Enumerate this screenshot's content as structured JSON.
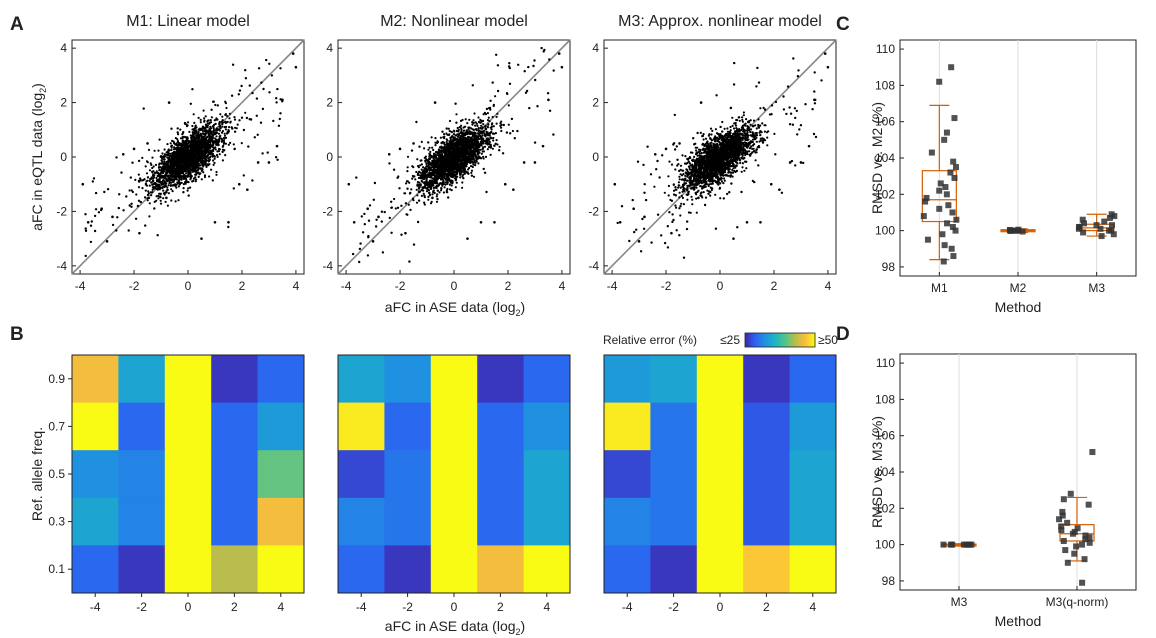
{
  "panel_letters": [
    "A",
    "B",
    "C",
    "D"
  ],
  "colorbar": {
    "label": "Relative error (%)",
    "min_label": "≤25",
    "max_label": "≥50",
    "min": 25,
    "max": 50,
    "colors": [
      "#3e26a8",
      "#2d62f2",
      "#1f92e0",
      "#1cb5c4",
      "#4dc68c",
      "#b7bd4f",
      "#fbbd3c",
      "#f9fb15"
    ]
  },
  "chart_data": [
    {
      "type": "scatter",
      "panel": "A",
      "title": "M1: Linear model",
      "xlabel": "",
      "ylabel": "aFC in eQTL data (log",
      "ylabel_sub": "2",
      "ylabel_close": ")",
      "xlim": [
        -4.3,
        4.3
      ],
      "ylim": [
        -4.3,
        4.3
      ],
      "xticks": [
        -4,
        -2,
        0,
        2,
        4
      ],
      "yticks": [
        -4,
        -2,
        0,
        2,
        4
      ],
      "reference_line": "y = x",
      "n_points": 2200,
      "spread": 0.55,
      "outliers": [
        [
          -3.7,
          -2.4
        ],
        [
          -3.2,
          -1.9
        ],
        [
          -2.8,
          -2.2
        ],
        [
          -2.4,
          0.1
        ],
        [
          -2.0,
          0.3
        ],
        [
          -1.8,
          -2.8
        ],
        [
          -1.5,
          0.5
        ],
        [
          -3.9,
          -1.0
        ],
        [
          -3.0,
          -3.1
        ],
        [
          1.9,
          -1.0
        ],
        [
          2.6,
          -0.2
        ],
        [
          3.3,
          0.4
        ],
        [
          3.0,
          -0.2
        ],
        [
          3.5,
          2.1
        ],
        [
          3.9,
          3.8
        ],
        [
          4.0,
          3.3
        ],
        [
          0.5,
          -3.0
        ],
        [
          -0.8,
          -1.5
        ],
        [
          1.0,
          -2.4
        ],
        [
          -0.7,
          2.0
        ],
        [
          1.5,
          -2.4
        ],
        [
          2.2,
          -1.2
        ]
      ]
    },
    {
      "type": "scatter",
      "panel": "A",
      "title": "M2: Nonlinear model",
      "xlabel": "aFC in ASE data (log",
      "xlabel_sub": "2",
      "xlabel_close": ")",
      "xlim": [
        -4.3,
        4.3
      ],
      "ylim": [
        -4.3,
        4.3
      ],
      "xticks": [
        -4,
        -2,
        0,
        2,
        4
      ],
      "yticks": [
        -4,
        -2,
        0,
        2,
        4
      ],
      "reference_line": "y = x",
      "n_points": 2200,
      "spread": 0.55,
      "outliers": [
        [
          -3.7,
          -2.4
        ],
        [
          -3.2,
          -1.9
        ],
        [
          -2.8,
          -2.2
        ],
        [
          -2.4,
          0.1
        ],
        [
          -2.0,
          0.3
        ],
        [
          -1.8,
          -2.8
        ],
        [
          -1.5,
          0.5
        ],
        [
          -3.9,
          -1.0
        ],
        [
          -3.0,
          -3.1
        ],
        [
          1.9,
          -1.0
        ],
        [
          2.6,
          -0.2
        ],
        [
          3.3,
          0.4
        ],
        [
          3.0,
          -0.2
        ],
        [
          3.5,
          2.1
        ],
        [
          3.9,
          3.8
        ],
        [
          4.0,
          3.3
        ],
        [
          0.5,
          -3.0
        ],
        [
          -0.8,
          -1.5
        ],
        [
          1.0,
          -2.4
        ],
        [
          -0.7,
          2.0
        ],
        [
          1.5,
          -2.4
        ],
        [
          2.2,
          -1.2
        ]
      ]
    },
    {
      "type": "scatter",
      "panel": "A",
      "title": "M3: Approx. nonlinear model",
      "xlim": [
        -4.3,
        4.3
      ],
      "ylim": [
        -4.3,
        4.3
      ],
      "xticks": [
        -4,
        -2,
        0,
        2,
        4
      ],
      "yticks": [
        -4,
        -2,
        0,
        2,
        4
      ],
      "reference_line": "y = x",
      "n_points": 2200,
      "spread": 0.55,
      "outliers": [
        [
          -3.7,
          -2.4
        ],
        [
          -3.2,
          -1.9
        ],
        [
          -2.8,
          -2.2
        ],
        [
          -2.4,
          0.1
        ],
        [
          -2.0,
          0.3
        ],
        [
          -1.8,
          -2.8
        ],
        [
          -1.5,
          0.5
        ],
        [
          -3.9,
          -1.0
        ],
        [
          -3.0,
          -3.1
        ],
        [
          1.9,
          -1.0
        ],
        [
          2.6,
          -0.2
        ],
        [
          3.3,
          0.4
        ],
        [
          3.0,
          -0.2
        ],
        [
          3.5,
          2.1
        ],
        [
          3.9,
          3.8
        ],
        [
          4.0,
          3.3
        ],
        [
          0.5,
          -3.0
        ],
        [
          -0.8,
          -1.5
        ],
        [
          1.0,
          -2.4
        ],
        [
          -0.7,
          2.0
        ],
        [
          1.5,
          -2.4
        ],
        [
          2.2,
          -1.2
        ]
      ]
    },
    {
      "type": "heatmap",
      "panel": "B",
      "ylabel": "Ref. allele freq.",
      "xticks": [
        "-4",
        "-2",
        "0",
        "2",
        "4"
      ],
      "yticks": [
        "0.9",
        "0.7",
        "0.5",
        "0.3",
        "0.1"
      ],
      "values": [
        [
          46,
          34,
          50,
          26,
          29
        ],
        [
          50,
          29,
          50,
          29,
          33
        ],
        [
          32,
          31,
          50,
          29,
          40
        ],
        [
          34,
          31,
          50,
          29,
          46
        ],
        [
          29,
          26,
          50,
          43,
          50
        ]
      ]
    },
    {
      "type": "heatmap",
      "panel": "B",
      "xlabel": "aFC in ASE data (log",
      "xlabel_sub": "2",
      "xlabel_close": ")",
      "xticks": [
        "-4",
        "-2",
        "0",
        "2",
        "4"
      ],
      "yticks": [
        "0.9",
        "0.7",
        "0.5",
        "0.3",
        "0.1"
      ],
      "values": [
        [
          34,
          32,
          50,
          26,
          29
        ],
        [
          49,
          29,
          50,
          29,
          32
        ],
        [
          27,
          30,
          50,
          29,
          34
        ],
        [
          31,
          30,
          50,
          29,
          34
        ],
        [
          29,
          26,
          50,
          46,
          50
        ]
      ]
    },
    {
      "type": "heatmap",
      "panel": "B",
      "xticks": [
        "-4",
        "-2",
        "0",
        "2",
        "4"
      ],
      "yticks": [
        "0.9",
        "0.7",
        "0.5",
        "0.3",
        "0.1"
      ],
      "values": [
        [
          33,
          34,
          50,
          26,
          29
        ],
        [
          49,
          30,
          50,
          28,
          33
        ],
        [
          27,
          30,
          50,
          28,
          34
        ],
        [
          31,
          30,
          50,
          28,
          34
        ],
        [
          29,
          26,
          50,
          47,
          50
        ]
      ]
    },
    {
      "type": "box",
      "panel": "C",
      "xlabel": "Method",
      "ylabel": "RMSD vs. M2 (%)",
      "ylim": [
        97.5,
        110.5
      ],
      "yticks": [
        98,
        100,
        102,
        104,
        106,
        108,
        110
      ],
      "categories": [
        "M1",
        "M2",
        "M3"
      ],
      "boxes": [
        {
          "q1": 100.5,
          "median": 101.7,
          "q3": 103.3,
          "whisker_low": 98.4,
          "whisker_high": 106.9,
          "points": [
            98.3,
            98.6,
            99.0,
            99.2,
            99.5,
            99.8,
            100.0,
            100.2,
            100.4,
            100.6,
            100.8,
            101.0,
            101.2,
            101.4,
            101.6,
            101.8,
            102.0,
            102.2,
            102.4,
            102.6,
            102.9,
            103.2,
            103.5,
            103.8,
            104.3,
            105.0,
            105.4,
            106.2,
            108.2,
            109.0
          ]
        },
        {
          "q1": 99.95,
          "median": 100.0,
          "q3": 100.05,
          "whisker_low": 99.9,
          "whisker_high": 100.1,
          "points": [
            99.95,
            100.0,
            100.0,
            100.02,
            100.05,
            99.98,
            100.03,
            100.0
          ]
        },
        {
          "q1": 100.0,
          "median": 100.15,
          "q3": 100.35,
          "whisker_low": 99.7,
          "whisker_high": 100.9,
          "points": [
            99.7,
            99.8,
            99.9,
            100.0,
            100.0,
            100.1,
            100.1,
            100.2,
            100.2,
            100.3,
            100.3,
            100.4,
            100.5,
            100.6,
            100.7,
            100.8,
            100.9
          ]
        }
      ]
    },
    {
      "type": "box",
      "panel": "D",
      "xlabel": "Method",
      "ylabel": "RMSD vs. M3 (%)",
      "ylim": [
        97.5,
        110.5
      ],
      "yticks": [
        98,
        100,
        102,
        104,
        106,
        108,
        110
      ],
      "categories": [
        "M3",
        "M3(q-norm)"
      ],
      "boxes": [
        {
          "q1": 99.97,
          "median": 100.0,
          "q3": 100.03,
          "whisker_low": 99.95,
          "whisker_high": 100.05,
          "points": [
            100.0,
            100.0,
            100.0,
            100.0,
            100.0,
            100.0,
            100.0,
            100.0
          ]
        },
        {
          "q1": 100.2,
          "median": 100.6,
          "q3": 101.1,
          "whisker_low": 99.1,
          "whisker_high": 102.6,
          "points": [
            97.9,
            99.0,
            99.2,
            99.5,
            99.7,
            99.9,
            100.0,
            100.1,
            100.2,
            100.3,
            100.4,
            100.5,
            100.6,
            100.7,
            100.8,
            100.9,
            101.0,
            101.2,
            101.4,
            101.6,
            101.8,
            102.2,
            102.5,
            102.8,
            105.1
          ]
        }
      ]
    }
  ]
}
